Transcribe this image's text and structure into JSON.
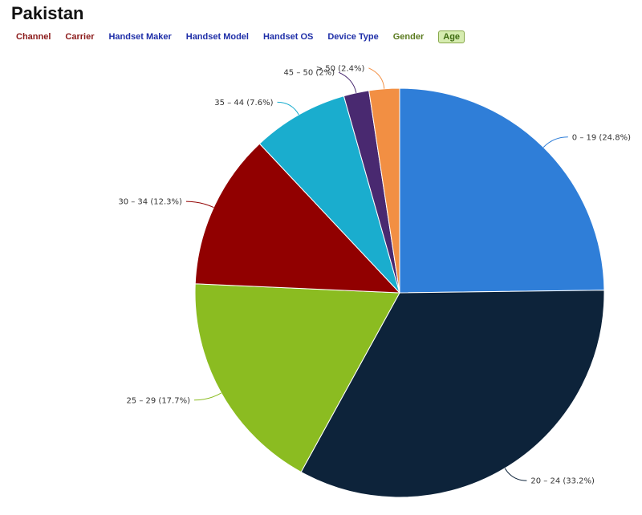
{
  "page": {
    "title": "Pakistan"
  },
  "tabs": [
    {
      "label": "Channel",
      "color": "#8b1a1a",
      "active": false
    },
    {
      "label": "Carrier",
      "color": "#8b1a1a",
      "active": false
    },
    {
      "label": "Handset Maker",
      "color": "#1f2fa8",
      "active": false
    },
    {
      "label": "Handset Model",
      "color": "#1f2fa8",
      "active": false
    },
    {
      "label": "Handset OS",
      "color": "#1f2fa8",
      "active": false
    },
    {
      "label": "Device Type",
      "color": "#1f2fa8",
      "active": false
    },
    {
      "label": "Gender",
      "color": "#5a7a1e",
      "active": false
    },
    {
      "label": "Age",
      "color": "#3d6b10",
      "active": true
    }
  ],
  "chart_data": {
    "type": "pie",
    "title": "",
    "slices": [
      {
        "label": "0 – 19",
        "value": 24.8,
        "display": "0 – 19 (24.8%)",
        "color": "#2f7ed8"
      },
      {
        "label": "20 – 24",
        "value": 33.2,
        "display": "20 – 24 (33.2%)",
        "color": "#0d233a"
      },
      {
        "label": "25 – 29",
        "value": 17.7,
        "display": "25 – 29 (17.7%)",
        "color": "#8bbc21"
      },
      {
        "label": "30 – 34",
        "value": 12.3,
        "display": "30 – 34 (12.3%)",
        "color": "#910000"
      },
      {
        "label": "35 – 44",
        "value": 7.6,
        "display": "35 – 44 (7.6%)",
        "color": "#1aadce"
      },
      {
        "label": "45 – 50",
        "value": 2,
        "display": "45 – 50 (2%)",
        "color": "#492970"
      },
      {
        "label": "> 50",
        "value": 2.4,
        "display": "> 50 (2.4%)",
        "color": "#f28f43"
      }
    ],
    "start": "top",
    "direction": "clockwise",
    "legend": "none"
  }
}
